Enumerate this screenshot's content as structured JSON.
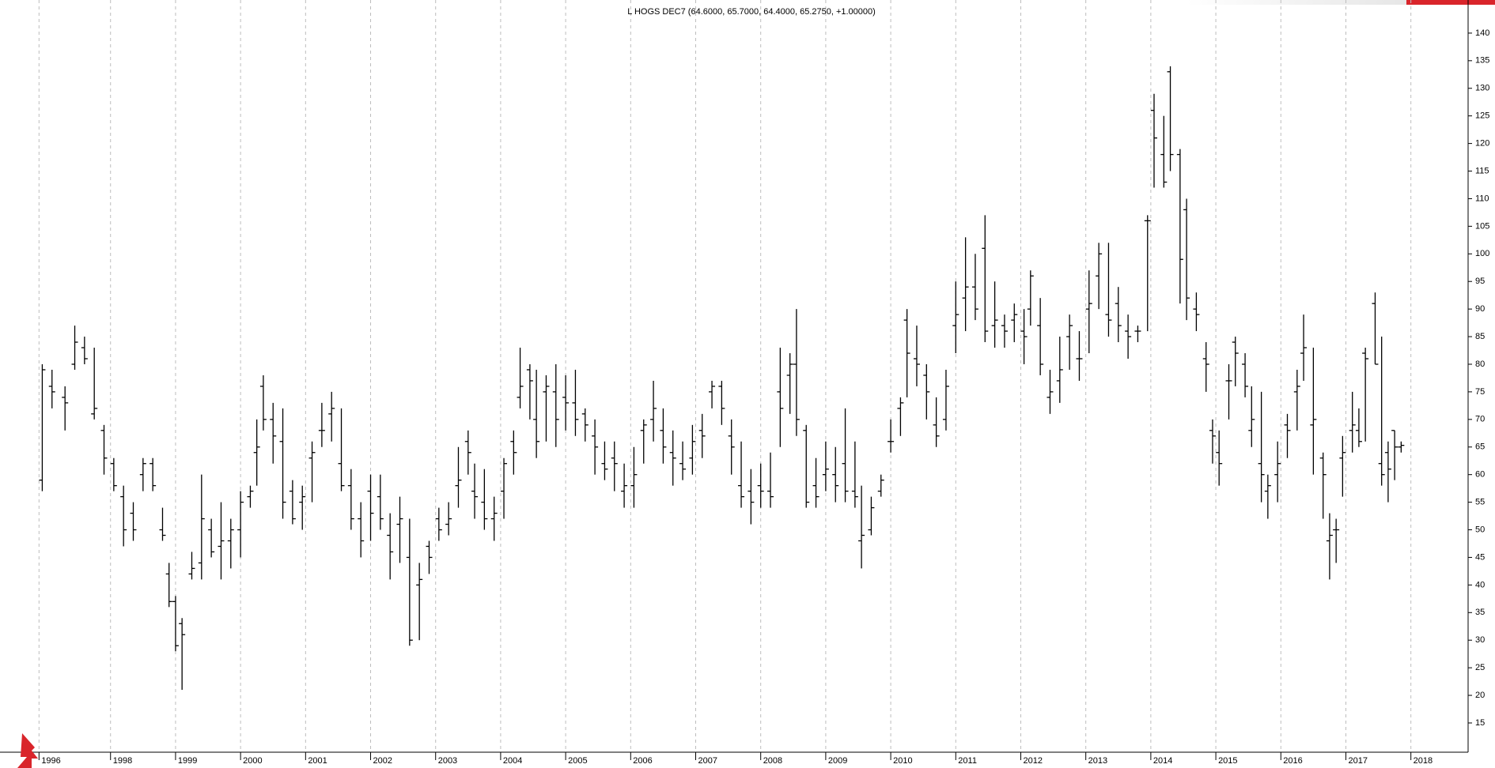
{
  "chart_data": {
    "type": "ohlc",
    "title": "L HOGS DEC7 (64.6000, 65.7000, 64.4000, 65.2750, +1.00000)",
    "x": [
      1996.95,
      1997.1,
      1997.3,
      1997.45,
      1997.6,
      1997.75,
      1997.9,
      1998.05,
      1998.2,
      1998.35,
      1998.5,
      1998.65,
      1998.8,
      1998.9,
      1999.0,
      1999.1,
      1999.25,
      1999.4,
      1999.55,
      1999.7,
      1999.85,
      2000.0,
      2000.15,
      2000.25,
      2000.35,
      2000.5,
      2000.65,
      2000.8,
      2000.95,
      2001.1,
      2001.25,
      2001.4,
      2001.55,
      2001.7,
      2001.85,
      2002.0,
      2002.15,
      2002.3,
      2002.45,
      2002.6,
      2002.75,
      2002.9,
      2003.05,
      2003.2,
      2003.35,
      2003.5,
      2003.6,
      2003.75,
      2003.9,
      2004.05,
      2004.2,
      2004.3,
      2004.45,
      2004.55,
      2004.7,
      2004.85,
      2005.0,
      2005.15,
      2005.3,
      2005.45,
      2005.6,
      2005.75,
      2005.9,
      2006.05,
      2006.2,
      2006.35,
      2006.5,
      2006.65,
      2006.8,
      2006.95,
      2007.1,
      2007.25,
      2007.4,
      2007.55,
      2007.7,
      2007.85,
      2008.0,
      2008.15,
      2008.3,
      2008.45,
      2008.55,
      2008.7,
      2008.85,
      2009.0,
      2009.15,
      2009.3,
      2009.45,
      2009.55,
      2009.7,
      2009.85,
      2010.0,
      2010.15,
      2010.25,
      2010.4,
      2010.55,
      2010.7,
      2010.85,
      2011.0,
      2011.15,
      2011.3,
      2011.45,
      2011.6,
      2011.75,
      2011.9,
      2012.05,
      2012.15,
      2012.3,
      2012.45,
      2012.6,
      2012.75,
      2012.9,
      2013.05,
      2013.2,
      2013.35,
      2013.5,
      2013.65,
      2013.8,
      2013.95,
      2014.05,
      2014.2,
      2014.3,
      2014.45,
      2014.55,
      2014.7,
      2014.85,
      2014.95,
      2015.05,
      2015.2,
      2015.3,
      2015.45,
      2015.55,
      2015.7,
      2015.8,
      2015.95,
      2016.1,
      2016.25,
      2016.35,
      2016.5,
      2016.65,
      2016.75,
      2016.85,
      2016.95,
      2017.1,
      2017.2,
      2017.3,
      2017.45,
      2017.55,
      2017.65,
      2017.75,
      2017.85
    ],
    "open": [
      59,
      76,
      74,
      80,
      83,
      71,
      68,
      62,
      56,
      53,
      60,
      62,
      50,
      42,
      37,
      33,
      42,
      44,
      50,
      47,
      48,
      50,
      56,
      64,
      76,
      70,
      66,
      57,
      55,
      63,
      68,
      71,
      62,
      58,
      52,
      57,
      56,
      49,
      51,
      45,
      40,
      47,
      52,
      51,
      58,
      66,
      57,
      55,
      52,
      57,
      66,
      74,
      79,
      70,
      75,
      75,
      74,
      73,
      71,
      67,
      62,
      63,
      57,
      58,
      68,
      70,
      68,
      64,
      62,
      63,
      68,
      75,
      76,
      67,
      58,
      57,
      58,
      57,
      75,
      78,
      80,
      68,
      58,
      60,
      60,
      62,
      57,
      48,
      50,
      57,
      66,
      72,
      88,
      81,
      78,
      69,
      70,
      87,
      92,
      94,
      101,
      87,
      87,
      88,
      86,
      90,
      87,
      74,
      77,
      85,
      81,
      90,
      96,
      89,
      91,
      86,
      86,
      106,
      126,
      118,
      133,
      118,
      108,
      90,
      81,
      68,
      64,
      77,
      84,
      80,
      68,
      62,
      57,
      60,
      69,
      75,
      82,
      69,
      63,
      48,
      50,
      63,
      68,
      68,
      82,
      91,
      62,
      64,
      68,
      65
    ],
    "high": [
      80,
      79,
      76,
      87,
      85,
      83,
      69,
      63,
      58,
      55,
      63,
      63,
      54,
      44,
      38,
      34,
      46,
      60,
      52,
      55,
      52,
      57,
      58,
      70,
      78,
      73,
      72,
      59,
      58,
      66,
      73,
      75,
      72,
      61,
      55,
      60,
      60,
      53,
      56,
      52,
      44,
      48,
      54,
      55,
      65,
      68,
      62,
      61,
      56,
      63,
      68,
      83,
      80,
      79,
      78,
      80,
      78,
      79,
      72,
      70,
      66,
      66,
      62,
      65,
      70,
      77,
      72,
      68,
      66,
      69,
      71,
      77,
      77,
      70,
      66,
      61,
      62,
      64,
      83,
      82,
      90,
      69,
      63,
      66,
      65,
      72,
      66,
      58,
      56,
      60,
      70,
      74,
      90,
      87,
      80,
      74,
      79,
      95,
      103,
      100,
      107,
      95,
      89,
      91,
      90,
      97,
      92,
      79,
      85,
      89,
      86,
      97,
      102,
      102,
      94,
      89,
      87,
      107,
      129,
      125,
      134,
      119,
      110,
      93,
      84,
      70,
      68,
      80,
      85,
      82,
      76,
      75,
      60,
      66,
      71,
      79,
      89,
      83,
      64,
      53,
      52,
      67,
      75,
      72,
      83,
      93,
      85,
      66,
      68,
      66
    ],
    "low": [
      57,
      72,
      68,
      79,
      80,
      70,
      60,
      57,
      47,
      48,
      57,
      57,
      48,
      36,
      28,
      21,
      41,
      41,
      45,
      41,
      43,
      45,
      54,
      58,
      68,
      62,
      52,
      51,
      50,
      55,
      65,
      66,
      57,
      50,
      45,
      48,
      50,
      41,
      44,
      29,
      30,
      42,
      48,
      49,
      54,
      60,
      52,
      50,
      48,
      52,
      60,
      72,
      70,
      63,
      66,
      65,
      68,
      67,
      66,
      60,
      59,
      57,
      54,
      54,
      62,
      66,
      62,
      58,
      59,
      60,
      63,
      72,
      69,
      60,
      54,
      51,
      54,
      54,
      65,
      71,
      67,
      54,
      54,
      57,
      55,
      55,
      54,
      43,
      49,
      56,
      64,
      67,
      74,
      76,
      70,
      65,
      68,
      82,
      86,
      88,
      84,
      83,
      83,
      84,
      80,
      87,
      78,
      71,
      73,
      79,
      77,
      82,
      90,
      85,
      84,
      81,
      84,
      86,
      112,
      112,
      115,
      91,
      88,
      86,
      75,
      62,
      58,
      70,
      76,
      74,
      65,
      55,
      52,
      55,
      63,
      68,
      77,
      60,
      52,
      41,
      44,
      56,
      64,
      65,
      66,
      80,
      58,
      55,
      59,
      64
    ],
    "close": [
      79,
      75,
      73,
      84,
      81,
      72,
      63,
      58,
      50,
      50,
      62,
      58,
      49,
      37,
      29,
      31,
      43,
      52,
      46,
      48,
      50,
      55,
      57,
      65,
      70,
      67,
      55,
      52,
      56,
      64,
      68,
      72,
      58,
      52,
      48,
      53,
      52,
      46,
      52,
      30,
      41,
      45,
      50,
      52,
      59,
      64,
      56,
      52,
      53,
      62,
      64,
      76,
      77,
      66,
      76,
      70,
      73,
      70,
      69,
      65,
      61,
      62,
      58,
      60,
      69,
      72,
      65,
      63,
      61,
      66,
      67,
      76,
      72,
      65,
      56,
      55,
      57,
      56,
      72,
      80,
      70,
      55,
      56,
      61,
      58,
      57,
      56,
      49,
      54,
      59,
      66,
      73,
      82,
      80,
      75,
      67,
      76,
      89,
      94,
      90,
      86,
      88,
      86,
      89,
      85,
      96,
      80,
      75,
      79,
      87,
      81,
      91,
      100,
      88,
      87,
      85,
      86,
      106,
      121,
      113,
      118,
      99,
      92,
      89,
      80,
      67,
      62,
      77,
      82,
      76,
      70,
      60,
      58,
      62,
      68,
      76,
      83,
      70,
      60,
      49,
      50,
      64,
      69,
      66,
      81,
      80,
      60,
      61,
      65,
      65.3
    ],
    "xlim": [
      1996.3,
      2018.88
    ],
    "xticks": [
      {
        "value": 1996.9,
        "label": "1996"
      },
      1998,
      1999,
      2000,
      2001,
      2002,
      2003,
      2004,
      2005,
      2006,
      2007,
      2008,
      2009,
      2010,
      2011,
      2012,
      2013,
      2014,
      2015,
      2016,
      2017,
      2018
    ],
    "ylim": [
      9.7,
      146
    ],
    "yticks": [
      15,
      20,
      25,
      30,
      35,
      40,
      45,
      50,
      55,
      60,
      65,
      70,
      75,
      80,
      85,
      90,
      95,
      100,
      105,
      110,
      115,
      120,
      125,
      130,
      135,
      140
    ],
    "grid": true,
    "color": "#000000"
  }
}
